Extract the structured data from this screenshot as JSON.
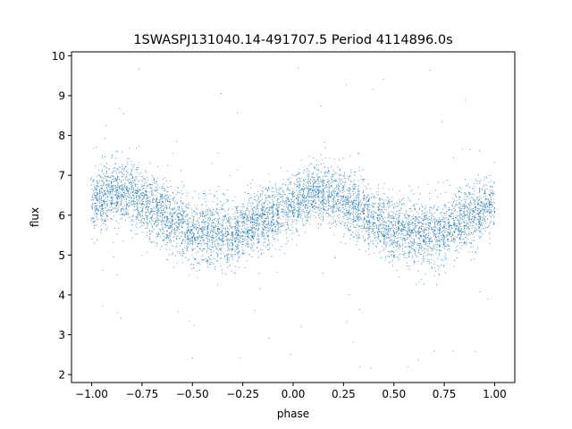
{
  "chart_data": {
    "type": "scatter",
    "title": "1SWASPJ131040.14-491707.5 Period 4114896.0s",
    "xlabel": "phase",
    "ylabel": "flux",
    "xlim": [
      -1.1,
      1.1
    ],
    "ylim": [
      1.8,
      10.1
    ],
    "xticks": [
      -1.0,
      -0.75,
      -0.5,
      -0.25,
      0.0,
      0.25,
      0.5,
      0.75,
      1.0
    ],
    "xtick_labels": [
      "−1.00",
      "−0.75",
      "−0.50",
      "−0.25",
      "0.00",
      "0.25",
      "0.50",
      "0.75",
      "1.00"
    ],
    "yticks": [
      2,
      3,
      4,
      5,
      6,
      7,
      8,
      9,
      10
    ],
    "ytick_labels": [
      "2",
      "3",
      "4",
      "5",
      "6",
      "7",
      "8",
      "9",
      "10"
    ],
    "grid": false,
    "marker_color": "#1f77b4",
    "series": [
      {
        "x_range": [
          -1.0,
          1.0
        ],
        "mean_curve": {
          "phase": [
            -1.0,
            -0.9,
            -0.8,
            -0.7,
            -0.6,
            -0.5,
            -0.4,
            -0.3,
            -0.2,
            -0.1,
            0.0,
            0.1,
            0.2,
            0.3,
            0.4,
            0.5,
            0.6,
            0.7,
            0.8,
            0.9,
            1.0
          ],
          "flux": [
            6.3,
            6.6,
            6.5,
            6.2,
            5.9,
            5.6,
            5.6,
            5.5,
            5.8,
            6.0,
            6.3,
            6.6,
            6.5,
            6.2,
            5.9,
            5.6,
            5.6,
            5.5,
            5.8,
            6.0,
            6.3
          ]
        },
        "typical_spread": 0.75,
        "outlier_range": [
          2.1,
          9.7
        ]
      }
    ]
  }
}
